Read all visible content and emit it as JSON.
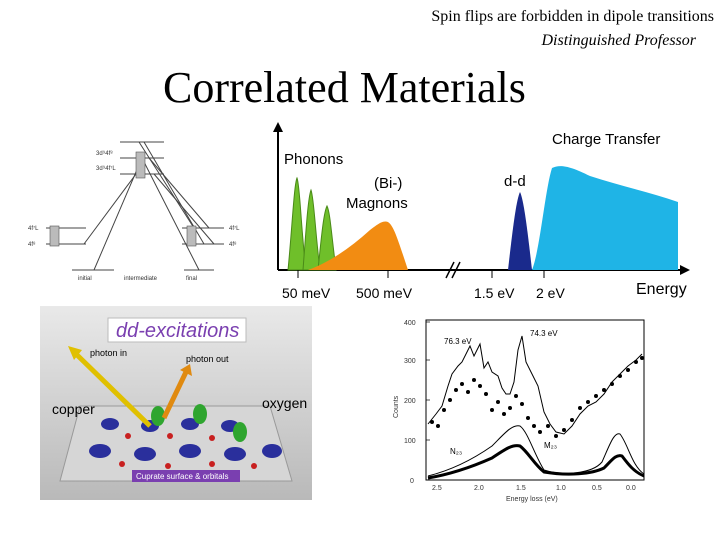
{
  "header": {
    "subtitle": "Spin flips are forbidden in dipole transitions",
    "byline": "Distinguished Professor",
    "title": "Correlated Materials"
  },
  "level_diagram": {
    "levels": [
      "3d⁹4f⁸",
      "3d⁹4f⁷L",
      "4f⁷L",
      "4f⁸",
      "4f⁷L",
      "4f⁸"
    ],
    "labels": [
      "initial",
      "intermediate",
      "final"
    ]
  },
  "spectrum": {
    "peaks": [
      "Phonons",
      "(Bi-)",
      "Magnons",
      "d-d",
      "Charge Transfer"
    ],
    "axis_labels": [
      "50 meV",
      "500 meV",
      "1.5 eV",
      "2 eV"
    ],
    "axis_title": "Energy",
    "colors": {
      "phonons": "#6fbf2a",
      "magnons": "#f28c12",
      "dd": "#1a2a8c",
      "ct": "#1fb4e6"
    }
  },
  "dd_panel": {
    "title": "dd-excitations",
    "photon_in": "photon in",
    "photon_out": "photon out",
    "copper": "copper",
    "oxygen": "oxygen",
    "caption": "Cuprate surface & orbitals"
  },
  "rixs_plot": {
    "annotations": [
      "76.3 eV",
      "74.3 eV",
      "M₂₃",
      "N₂₃"
    ],
    "ylabel": "Counts",
    "xlabel": "Energy loss (eV)",
    "yticks": [
      "0",
      "100",
      "200",
      "300",
      "400"
    ],
    "xticks": [
      "2.5",
      "2.0",
      "1.5",
      "1.0",
      "0.5",
      "0.0"
    ]
  }
}
